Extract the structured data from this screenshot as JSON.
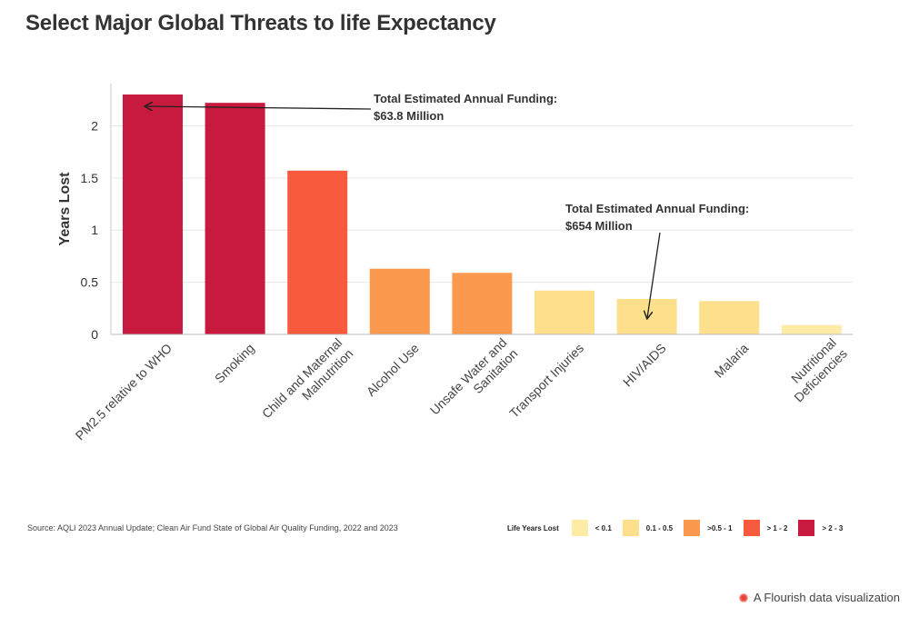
{
  "title": "Select Major Global Threats to life Expectancy",
  "source": "Source: AQLI 2023 Annual Update; Clean Air Fund State of Global Air Quality Funding, 2022 and 2023",
  "branding": "A Flourish data visualization",
  "legend": {
    "title": "Life Years Lost",
    "entries": [
      {
        "label": "< 0.1",
        "color": "#fdeba6"
      },
      {
        "label": "0.1 - 0.5",
        "color": "#fddf8c"
      },
      {
        "label": ">0.5 - 1",
        "color": "#fb9a4e"
      },
      {
        "label": "> 1 - 2",
        "color": "#f85a3e"
      },
      {
        "label": "> 2 - 3",
        "color": "#c8193e"
      }
    ]
  },
  "chart_data": {
    "type": "bar",
    "title": "Select Major Global Threats to life Expectancy",
    "xlabel": "",
    "ylabel": "Years Lost",
    "ylim": [
      0,
      2.3
    ],
    "yticks": [
      0,
      0.5,
      1,
      1.5,
      2
    ],
    "ytick_labels": [
      "0",
      "0.5",
      "1",
      "1.5",
      "2"
    ],
    "grid": true,
    "categories": [
      [
        "PM2.5 relative to WHO"
      ],
      [
        "Smoking"
      ],
      [
        "Child and Maternal",
        "Malnutrition"
      ],
      [
        "Alcohol Use"
      ],
      [
        "Unsafe Water and",
        "Sanitation"
      ],
      [
        "Transport Injuries"
      ],
      [
        "HIV/AIDS"
      ],
      [
        "Malaria"
      ],
      [
        "Nutritional",
        "Deficiencies"
      ]
    ],
    "values": [
      2.3,
      2.22,
      1.57,
      0.63,
      0.59,
      0.42,
      0.34,
      0.32,
      0.09
    ],
    "colors": [
      "#c8193e",
      "#c8193e",
      "#f85a3e",
      "#fb9a4e",
      "#fb9a4e",
      "#fddf8c",
      "#fddf8c",
      "#fddf8c",
      "#fdeba6"
    ],
    "annotations": [
      {
        "lines": [
          "Total Estimated Annual Funding:",
          "$63.8 Million"
        ],
        "target_index": 0
      },
      {
        "lines": [
          "Total Estimated Annual Funding:",
          "$654 Million"
        ],
        "target_index": 6
      }
    ]
  }
}
